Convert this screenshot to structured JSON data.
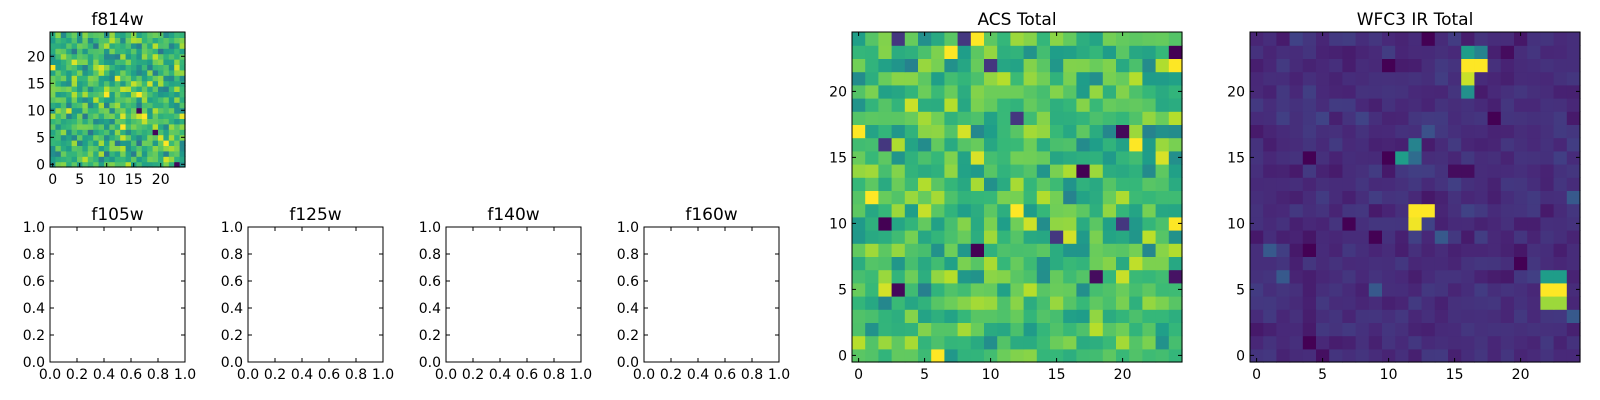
{
  "figure": {
    "background": "#ffffff"
  },
  "colormap": {
    "name": "viridis",
    "stops": [
      "#440154",
      "#482878",
      "#3e4989",
      "#31688e",
      "#26828e",
      "#1f9e89",
      "#35b779",
      "#6ece58",
      "#b5de2b",
      "#fde725"
    ]
  },
  "chart_data": [
    {
      "id": "f814w",
      "type": "heatmap",
      "title": "f814w",
      "grid_size": 25,
      "xlim": [
        -0.5,
        24.5
      ],
      "ylim": [
        -0.5,
        24.5
      ],
      "xticks": [
        0,
        5,
        10,
        15,
        20
      ],
      "xtick_labels": [
        "0",
        "5",
        "10",
        "15",
        "20"
      ],
      "yticks": [
        0,
        5,
        10,
        15,
        20
      ],
      "ytick_labels": [
        "0",
        "5",
        "10",
        "15",
        "20"
      ],
      "colormap": "viridis",
      "pattern": "noise",
      "value_range": [
        0,
        1
      ],
      "mean": 0.68,
      "spread": 0.22,
      "seed": 814
    },
    {
      "id": "f105w",
      "type": "empty",
      "title": "f105w",
      "xlim": [
        0,
        1
      ],
      "ylim": [
        0,
        1
      ],
      "xticks": [
        0,
        0.2,
        0.4,
        0.6,
        0.8,
        1.0
      ],
      "xtick_labels": [
        "0.0",
        "0.2",
        "0.4",
        "0.6",
        "0.8",
        "1.0"
      ],
      "yticks": [
        0,
        0.2,
        0.4,
        0.6,
        0.8,
        1.0
      ],
      "ytick_labels": [
        "0.0",
        "0.2",
        "0.4",
        "0.6",
        "0.8",
        "1.0"
      ]
    },
    {
      "id": "f125w",
      "type": "empty",
      "title": "f125w",
      "xlim": [
        0,
        1
      ],
      "ylim": [
        0,
        1
      ],
      "xticks": [
        0,
        0.2,
        0.4,
        0.6,
        0.8,
        1.0
      ],
      "xtick_labels": [
        "0.0",
        "0.2",
        "0.4",
        "0.6",
        "0.8",
        "1.0"
      ],
      "yticks": [
        0,
        0.2,
        0.4,
        0.6,
        0.8,
        1.0
      ],
      "ytick_labels": [
        "0.0",
        "0.2",
        "0.4",
        "0.6",
        "0.8",
        "1.0"
      ]
    },
    {
      "id": "f140w",
      "type": "empty",
      "title": "f140w",
      "xlim": [
        0,
        1
      ],
      "ylim": [
        0,
        1
      ],
      "xticks": [
        0,
        0.2,
        0.4,
        0.6,
        0.8,
        1.0
      ],
      "xtick_labels": [
        "0.0",
        "0.2",
        "0.4",
        "0.6",
        "0.8",
        "1.0"
      ],
      "yticks": [
        0,
        0.2,
        0.4,
        0.6,
        0.8,
        1.0
      ],
      "ytick_labels": [
        "0.0",
        "0.2",
        "0.4",
        "0.6",
        "0.8",
        "1.0"
      ]
    },
    {
      "id": "f160w",
      "type": "empty",
      "title": "f160w",
      "xlim": [
        0,
        1
      ],
      "ylim": [
        0,
        1
      ],
      "xticks": [
        0,
        0.2,
        0.4,
        0.6,
        0.8,
        1.0
      ],
      "xtick_labels": [
        "0.0",
        "0.2",
        "0.4",
        "0.6",
        "0.8",
        "1.0"
      ],
      "yticks": [
        0,
        0.2,
        0.4,
        0.6,
        0.8,
        1.0
      ],
      "ytick_labels": [
        "0.0",
        "0.2",
        "0.4",
        "0.6",
        "0.8",
        "1.0"
      ]
    },
    {
      "id": "acs-total",
      "type": "heatmap",
      "title": "ACS Total",
      "grid_size": 25,
      "xlim": [
        -0.5,
        24.5
      ],
      "ylim": [
        -0.5,
        24.5
      ],
      "xticks": [
        0,
        5,
        10,
        15,
        20
      ],
      "xtick_labels": [
        "0",
        "5",
        "10",
        "15",
        "20"
      ],
      "yticks": [
        0,
        5,
        10,
        15,
        20
      ],
      "ytick_labels": [
        "0",
        "5",
        "10",
        "15",
        "20"
      ],
      "colormap": "viridis",
      "pattern": "noise",
      "value_range": [
        0,
        1
      ],
      "mean": 0.7,
      "spread": 0.18,
      "seed": 2017,
      "fixed_cells": [
        {
          "x": 2,
          "y": 10,
          "value": 0.0
        },
        {
          "x": 3,
          "y": 5,
          "value": 0.02
        },
        {
          "x": 9,
          "y": 8,
          "value": 0.0
        },
        {
          "x": 18,
          "y": 6,
          "value": 0.03
        },
        {
          "x": 20,
          "y": 17,
          "value": 0.02
        },
        {
          "x": 17,
          "y": 14,
          "value": 0.0
        },
        {
          "x": 24,
          "y": 6,
          "value": 0.05
        },
        {
          "x": 24,
          "y": 23,
          "value": 0.0
        },
        {
          "x": 6,
          "y": 0,
          "value": 1.0
        },
        {
          "x": 7,
          "y": 23,
          "value": 1.0
        },
        {
          "x": 9,
          "y": 24,
          "value": 1.0
        },
        {
          "x": 21,
          "y": 16,
          "value": 1.0
        },
        {
          "x": 24,
          "y": 10,
          "value": 1.0
        },
        {
          "x": 12,
          "y": 11,
          "value": 1.0
        }
      ]
    },
    {
      "id": "wfc3-ir-total",
      "type": "heatmap",
      "title": "WFC3 IR Total",
      "grid_size": 25,
      "xlim": [
        -0.5,
        24.5
      ],
      "ylim": [
        -0.5,
        24.5
      ],
      "xticks": [
        0,
        5,
        10,
        15,
        20
      ],
      "xtick_labels": [
        "0",
        "5",
        "10",
        "15",
        "20"
      ],
      "yticks": [
        0,
        5,
        10,
        15,
        20
      ],
      "ytick_labels": [
        "0",
        "5",
        "10",
        "15",
        "20"
      ],
      "colormap": "viridis",
      "pattern": "noise",
      "value_range": [
        0,
        1
      ],
      "mean": 0.13,
      "spread": 0.05,
      "seed": 3033,
      "fixed_cells": [
        {
          "x": 16,
          "y": 22,
          "value": 1.0
        },
        {
          "x": 17,
          "y": 22,
          "value": 1.0
        },
        {
          "x": 16,
          "y": 21,
          "value": 0.92
        },
        {
          "x": 16,
          "y": 23,
          "value": 0.55
        },
        {
          "x": 17,
          "y": 23,
          "value": 0.45
        },
        {
          "x": 16,
          "y": 20,
          "value": 0.5
        },
        {
          "x": 11,
          "y": 15,
          "value": 0.55
        },
        {
          "x": 12,
          "y": 16,
          "value": 0.45
        },
        {
          "x": 12,
          "y": 15,
          "value": 0.35
        },
        {
          "x": 12,
          "y": 11,
          "value": 1.0
        },
        {
          "x": 13,
          "y": 11,
          "value": 1.0
        },
        {
          "x": 12,
          "y": 10,
          "value": 0.98
        },
        {
          "x": 13,
          "y": 10,
          "value": 0.2
        },
        {
          "x": 22,
          "y": 6,
          "value": 0.55
        },
        {
          "x": 23,
          "y": 6,
          "value": 0.55
        },
        {
          "x": 22,
          "y": 5,
          "value": 1.0
        },
        {
          "x": 23,
          "y": 5,
          "value": 1.0
        },
        {
          "x": 22,
          "y": 4,
          "value": 0.85
        },
        {
          "x": 23,
          "y": 4,
          "value": 0.85
        },
        {
          "x": 13,
          "y": 17,
          "value": 0.25
        },
        {
          "x": 15,
          "y": 14,
          "value": 0.03
        },
        {
          "x": 16,
          "y": 14,
          "value": 0.03
        },
        {
          "x": 5,
          "y": 0,
          "value": 0.04
        },
        {
          "x": 19,
          "y": 23,
          "value": 0.03
        }
      ]
    }
  ]
}
